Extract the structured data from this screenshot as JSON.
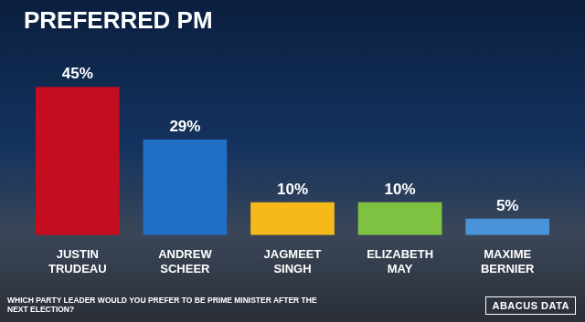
{
  "chart_data": {
    "type": "bar",
    "title": "PREFERRED PM",
    "categories": [
      "JUSTIN TRUDEAU",
      "ANDREW SCHEER",
      "JAGMEET SINGH",
      "ELIZABETH MAY",
      "MAXIME BERNIER"
    ],
    "values": [
      45,
      29,
      10,
      10,
      5
    ],
    "value_labels": [
      "45%",
      "29%",
      "10%",
      "10%",
      "5%"
    ],
    "colors": [
      "#c40d1e",
      "#1f6fc5",
      "#f5b91c",
      "#7fc241",
      "#4a93d8"
    ],
    "ylim": [
      0,
      50
    ],
    "grid": false,
    "tick_labels": "x",
    "data_labels": true,
    "annotations": [
      "WHICH PARTY LEADER WOULD YOU PREFER TO BE PRIME MINISTER AFTER THE NEXT ELECTION?",
      "ABACUS DATA"
    ]
  }
}
